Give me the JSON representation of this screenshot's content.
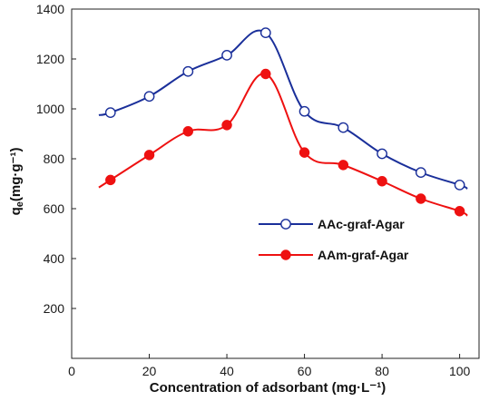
{
  "chart_data": {
    "type": "line",
    "xlabel": "Concentration of adsorbant (mg·L⁻¹)",
    "ylabel_main": "q",
    "ylabel_sub": "e",
    "ylabel_unit": "(mg·g⁻¹)",
    "xlim": [
      0,
      105
    ],
    "ylim": [
      0,
      1400
    ],
    "xticks": [
      0,
      20,
      40,
      60,
      80,
      100
    ],
    "yticks": [
      200,
      400,
      600,
      800,
      1000,
      1200,
      1400
    ],
    "grid": false,
    "legend_position": "middle-right",
    "series": [
      {
        "name": "AAc-graf-Agar",
        "color": "#1a2f9a",
        "marker": "open-circle",
        "x": [
          10,
          20,
          30,
          40,
          50,
          60,
          70,
          80,
          90,
          100
        ],
        "y": [
          985,
          1050,
          1150,
          1215,
          1305,
          990,
          925,
          820,
          745,
          695
        ],
        "line_x": [
          7,
          10,
          20,
          30,
          40,
          50,
          60,
          70,
          80,
          90,
          100,
          102
        ],
        "line_y": [
          975,
          985,
          1050,
          1150,
          1215,
          1305,
          990,
          925,
          820,
          745,
          695,
          680
        ]
      },
      {
        "name": "AAm-graf-Agar",
        "color": "#ee1111",
        "marker": "filled-circle",
        "x": [
          10,
          20,
          30,
          40,
          50,
          60,
          70,
          80,
          90,
          100
        ],
        "y": [
          715,
          815,
          910,
          935,
          1140,
          825,
          775,
          710,
          640,
          590
        ],
        "line_x": [
          7,
          10,
          20,
          30,
          40,
          50,
          60,
          70,
          80,
          90,
          100,
          102
        ],
        "line_y": [
          685,
          715,
          815,
          910,
          935,
          1140,
          825,
          775,
          710,
          640,
          590,
          572
        ]
      }
    ]
  }
}
